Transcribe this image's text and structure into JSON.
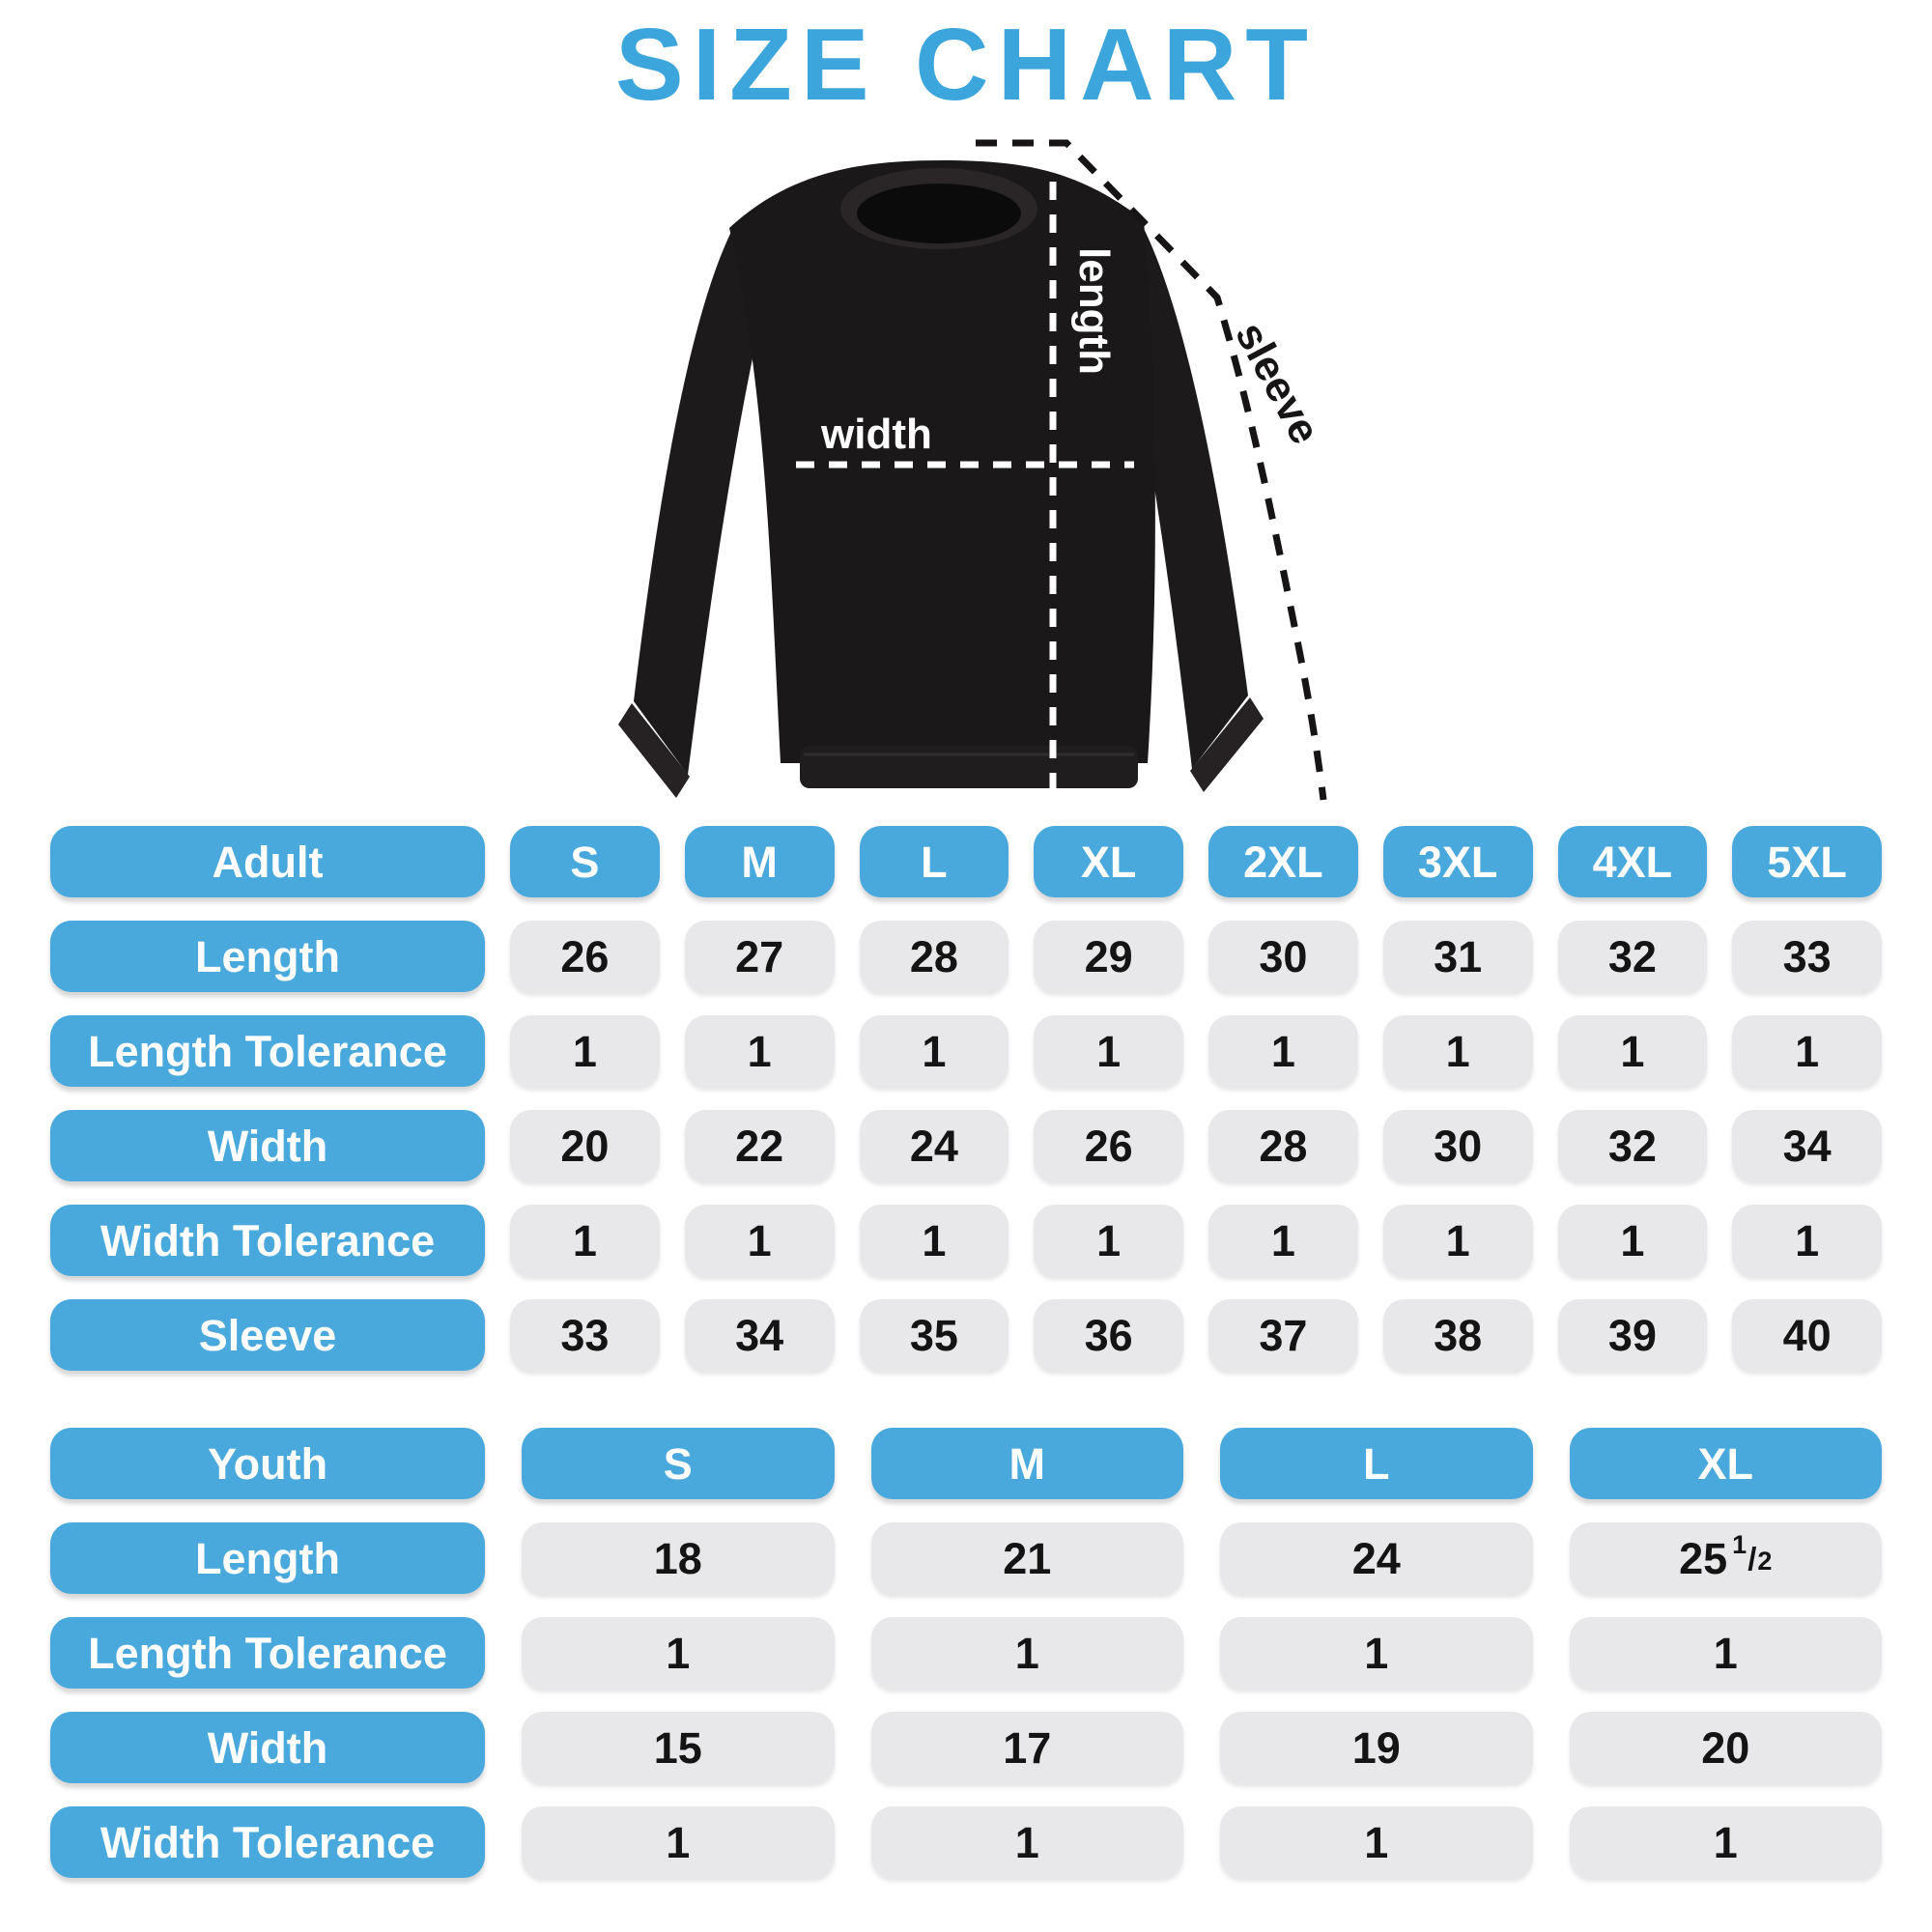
{
  "title": "SIZE CHART",
  "colors": {
    "accent_blue": "#49A8DC",
    "title_blue": "#3CA5DC",
    "cell_gray": "#E8E8EA",
    "value_text": "#141414",
    "shirt_black": "#1b1819"
  },
  "diagram": {
    "garment": "black crewneck sweatshirt",
    "length_label": "length",
    "width_label": "width",
    "sleeve_label": "sleeve"
  },
  "chart_data": [
    {
      "type": "table",
      "name": "adult",
      "header": [
        "Adult",
        "S",
        "M",
        "L",
        "XL",
        "2XL",
        "3XL",
        "4XL",
        "5XL"
      ],
      "rows": [
        [
          "Length",
          "26",
          "27",
          "28",
          "29",
          "30",
          "31",
          "32",
          "33"
        ],
        [
          "Length Tolerance",
          "1",
          "1",
          "1",
          "1",
          "1",
          "1",
          "1",
          "1"
        ],
        [
          "Width",
          "20",
          "22",
          "24",
          "26",
          "28",
          "30",
          "32",
          "34"
        ],
        [
          "Width Tolerance",
          "1",
          "1",
          "1",
          "1",
          "1",
          "1",
          "1",
          "1"
        ],
        [
          "Sleeve",
          "33",
          "34",
          "35",
          "36",
          "37",
          "38",
          "39",
          "40"
        ]
      ]
    },
    {
      "type": "table",
      "name": "youth",
      "header": [
        "Youth",
        "S",
        "M",
        "L",
        "XL"
      ],
      "rows": [
        [
          "Length",
          "18",
          "21",
          "24",
          "25 1/2"
        ],
        [
          "Length Tolerance",
          "1",
          "1",
          "1",
          "1"
        ],
        [
          "Width",
          "15",
          "17",
          "19",
          "20"
        ],
        [
          "Width Tolerance",
          "1",
          "1",
          "1",
          "1"
        ]
      ]
    }
  ]
}
